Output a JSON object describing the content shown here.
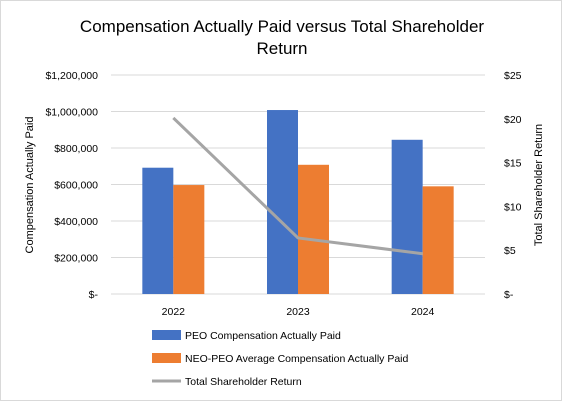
{
  "chart_data": {
    "type": "bar",
    "title_lines": [
      "Compensation Actually Paid versus Total Shareholder",
      "Return"
    ],
    "categories": [
      "2022",
      "2023",
      "2024"
    ],
    "series": [
      {
        "name": "PEO  Compensation Actually Paid",
        "kind": "bar",
        "axis": "left",
        "color": "#4472c4",
        "values": [
          692000,
          1008000,
          845000
        ]
      },
      {
        "name": "NEO-PEO Average Compensation Actually Paid",
        "kind": "bar",
        "axis": "left",
        "color": "#ed7d31",
        "values": [
          597000,
          708000,
          590000
        ]
      },
      {
        "name": "Total Shareholder Return",
        "kind": "line",
        "axis": "right",
        "color": "#a5a5a5",
        "values": [
          20.1,
          6.4,
          4.6
        ]
      }
    ],
    "ylabel": "Compensation Actually Paid",
    "y2label": "Total Shareholder Return",
    "ylim": [
      0,
      1200000
    ],
    "y2lim": [
      0,
      25
    ],
    "yticks": [
      "$-",
      "$200,000",
      "$400,000",
      "$600,000",
      "$800,000",
      "$1,000,000",
      "$1,200,000"
    ],
    "y2ticks": [
      "$-",
      "$5",
      "$10",
      "$15",
      "$20",
      "$25"
    ],
    "grid": true,
    "legend_position": "bottom"
  }
}
